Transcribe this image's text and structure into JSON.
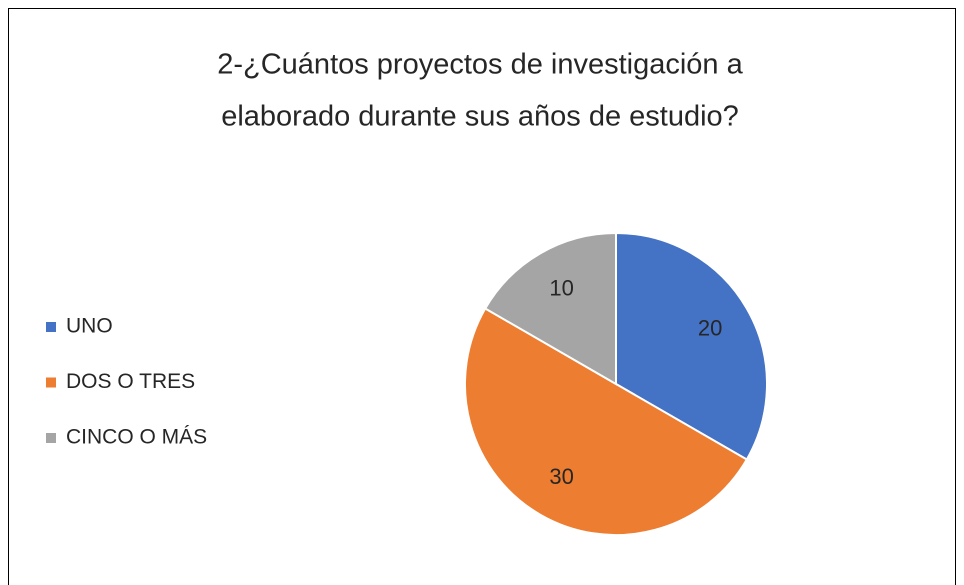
{
  "chart_data": {
    "type": "pie",
    "title": [
      "2-¿Cuántos proyectos de investigación a",
      "elaborado durante sus años de estudio?"
    ],
    "categories": [
      "UNO",
      "DOS O TRES",
      "CINCO O MÁS"
    ],
    "values": [
      20,
      30,
      10
    ],
    "colors": [
      "#4472c4",
      "#ed7d31",
      "#a5a5a5"
    ],
    "legend": "left"
  }
}
